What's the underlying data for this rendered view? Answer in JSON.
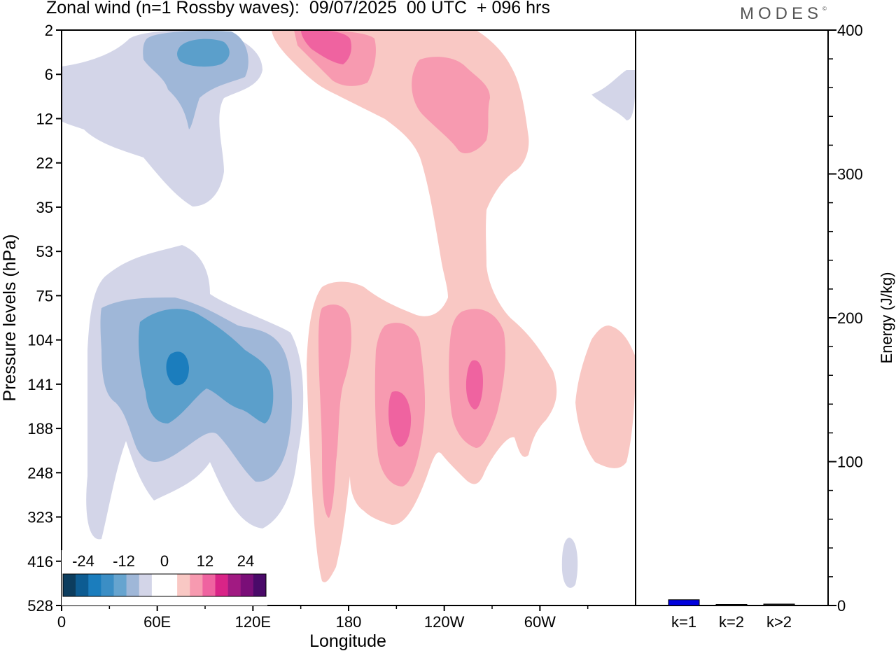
{
  "title": "Zonal wind (n=1 Rossby waves):  09/07/2025  00 UTC  + 096 hrs",
  "logo": "MODES",
  "logo_mark": "©",
  "colors": {
    "neg_strong": "#1b7dbd",
    "neg_medium": "#5b9fcb",
    "neg_weak": "#9fb7d8",
    "neg_faint": "#d3d5e8",
    "pos_faint": "#f9c8c4",
    "pos_weak": "#f79ab0",
    "pos_medium": "#ef63a0",
    "bar": "#0000dd"
  },
  "chart_data": [
    {
      "type": "heatmap",
      "title": "Zonal wind (n=1 Rossby waves):  09/07/2025  00 UTC  + 096 hrs",
      "xlabel": "Longitude",
      "ylabel": "Pressure levels (hPa)",
      "x_ticks": [
        "0",
        "60E",
        "120E",
        "180",
        "120W",
        "60W"
      ],
      "x_tick_values": [
        0,
        60,
        120,
        180,
        240,
        300
      ],
      "xlim": [
        0,
        360
      ],
      "y_levels": [
        2,
        6,
        12,
        22,
        35,
        53,
        75,
        104,
        141,
        188,
        248,
        323,
        416,
        528
      ],
      "y_ticks": [
        "2",
        "6",
        "12",
        "22",
        "35",
        "53",
        "75",
        "104",
        "141",
        "188",
        "248",
        "323",
        "416",
        "528"
      ],
      "y_axis_inverted": true,
      "colorbar": {
        "labels": [
          "-24",
          "-12",
          "0",
          "12",
          "24"
        ],
        "label_values": [
          -24,
          -12,
          0,
          12,
          24
        ],
        "levels": [
          -30,
          -27,
          -24,
          -21,
          -18,
          -15,
          -12,
          -9,
          -6,
          -3,
          3,
          6,
          9,
          12,
          15,
          18,
          21,
          24,
          27,
          30
        ],
        "swatches": [
          "#0c3d5e",
          "#0d5c92",
          "#1b7dbd",
          "#3b8ec5",
          "#66a4cf",
          "#9fb7d8",
          "#d3d5e8",
          "#ffffff",
          "#ffffff",
          "#f9c8c4",
          "#f79ab0",
          "#ef63a0",
          "#d92487",
          "#a11a82",
          "#7a0e78",
          "#4a0a69"
        ],
        "placement": "bottom-left inside plot"
      },
      "contour_features": [
        {
          "sign": "negative",
          "lon": 60,
          "level_hPa": 130,
          "peak": -21
        },
        {
          "sign": "negative",
          "lon": 40,
          "level_hPa": 3,
          "peak": -12
        },
        {
          "sign": "positive",
          "lon": 150,
          "level_hPa": 2,
          "peak": 12
        },
        {
          "sign": "positive",
          "lon": 205,
          "level_hPa": 155,
          "peak": 12
        },
        {
          "sign": "positive",
          "lon": 250,
          "level_hPa": 140,
          "peak": 12
        },
        {
          "sign": "positive",
          "lon": 170,
          "level_hPa": 120,
          "peak": 9
        },
        {
          "sign": "positive",
          "lon": 225,
          "level_hPa": 8,
          "peak": 9
        }
      ]
    },
    {
      "type": "bar",
      "categories": [
        "k=1",
        "k=2",
        "k>2"
      ],
      "values": [
        4,
        0.5,
        1
      ],
      "ylabel": "Energy (J/kg)",
      "ylim": [
        0,
        400
      ],
      "y_ticks": [
        "0",
        "100",
        "200",
        "300",
        "400"
      ],
      "y_tick_values": [
        0,
        100,
        200,
        300,
        400
      ],
      "y_axis_side": "right"
    }
  ]
}
